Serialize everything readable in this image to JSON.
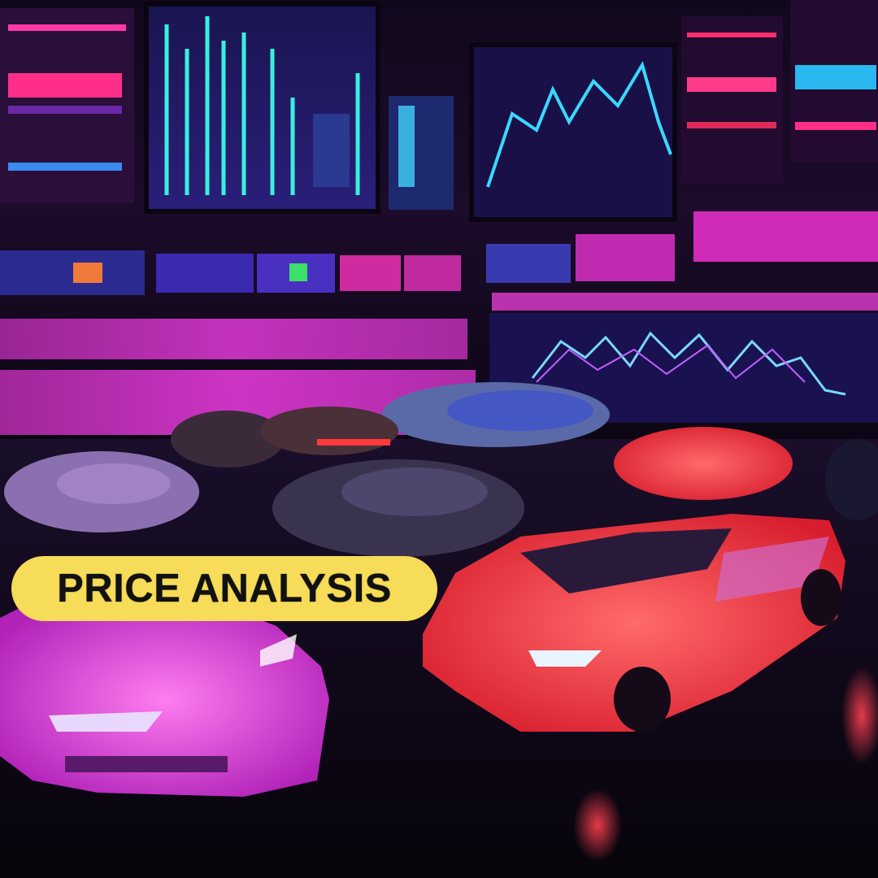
{
  "badge": {
    "label": "PRICE ANALYSIS"
  },
  "colors": {
    "badge_bg": "#f6dc58",
    "badge_text": "#111111",
    "neon_pink": "#e23ad8",
    "neon_cyan": "#38d8f0",
    "neon_red": "#ff3a3a"
  },
  "icons": [
    "monitor-wall",
    "stock-chart-screen",
    "sports-car"
  ]
}
